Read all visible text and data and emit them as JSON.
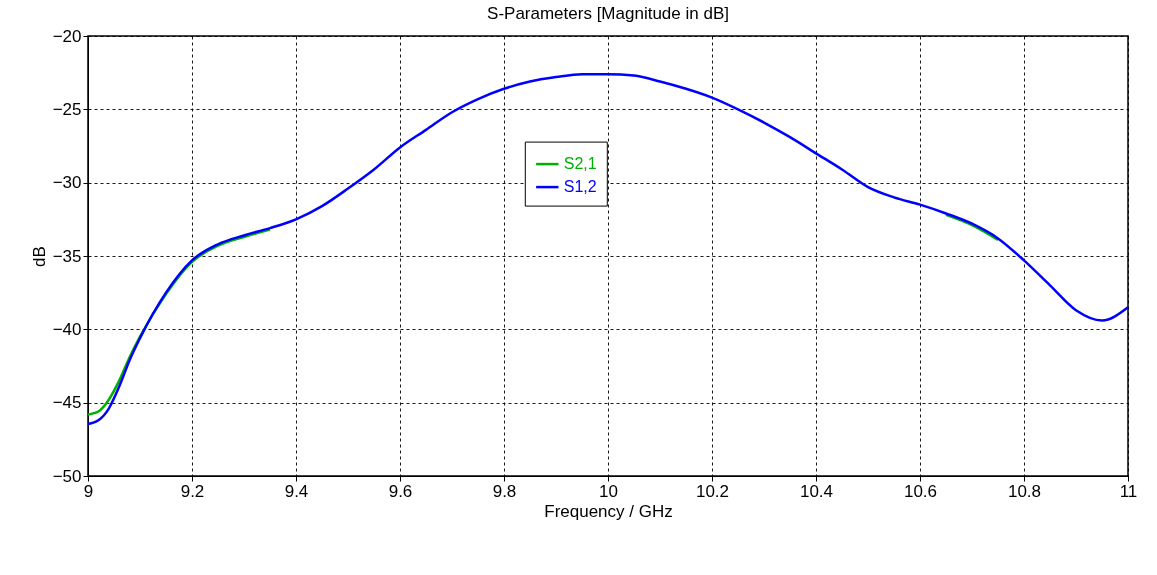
{
  "chart_data": {
    "type": "line",
    "title": "S-Parameters [Magnitude in dB]",
    "xlabel": "Frequency / GHz",
    "ylabel": "dB",
    "xlim": [
      9,
      11
    ],
    "xticks": [
      9,
      9.2,
      9.4,
      9.6,
      9.8,
      10,
      10.2,
      10.4,
      10.6,
      10.8,
      11
    ],
    "ylim": [
      -50,
      -20
    ],
    "yticks": [
      -50,
      -45,
      -40,
      -35,
      -30,
      -25,
      -20
    ],
    "grid": true,
    "legend": "top",
    "line_style": "solid",
    "marker": "none",
    "x": [
      9.0,
      9.02,
      9.04,
      9.06,
      9.08,
      9.1,
      9.15,
      9.2,
      9.25,
      9.3,
      9.35,
      9.4,
      9.45,
      9.5,
      9.55,
      9.6,
      9.65,
      9.7,
      9.75,
      9.8,
      9.85,
      9.9,
      9.95,
      10.0,
      10.05,
      10.1,
      10.15,
      10.2,
      10.25,
      10.3,
      10.35,
      10.4,
      10.45,
      10.5,
      10.55,
      10.6,
      10.65,
      10.7,
      10.75,
      10.8,
      10.85,
      10.9,
      10.95,
      11.0
    ],
    "series": [
      {
        "name": "S2,1",
        "color": "#00b000",
        "values": [
          -45.8,
          -45.6,
          -44.8,
          -43.5,
          -41.9,
          -40.5,
          -37.6,
          -35.4,
          -34.3,
          -33.7,
          -33.2,
          null,
          null,
          null,
          null,
          null,
          null,
          null,
          null,
          null,
          null,
          null,
          null,
          null,
          null,
          null,
          null,
          null,
          null,
          null,
          null,
          null,
          null,
          null,
          null,
          null,
          -32.2,
          -32.9,
          -33.9,
          null,
          null,
          null,
          null,
          null
        ]
      },
      {
        "name": "S1,2",
        "color": "#0000ff",
        "values": [
          -46.45,
          -46.2,
          -45.4,
          -43.9,
          -42.1,
          -40.6,
          -37.5,
          -35.3,
          -34.2,
          -33.6,
          -33.1,
          -32.5,
          -31.6,
          -30.4,
          -29.1,
          -27.6,
          -26.4,
          -25.2,
          -24.3,
          -23.6,
          -23.1,
          -22.8,
          -22.6,
          -22.6,
          -22.7,
          -23.1,
          -23.6,
          -24.2,
          -25.0,
          -25.9,
          -26.9,
          -28.0,
          -29.1,
          -30.3,
          -31.0,
          -31.5,
          -32.1,
          -32.8,
          -33.8,
          -35.3,
          -37.0,
          -38.7,
          -39.4,
          -38.5
        ]
      }
    ]
  }
}
